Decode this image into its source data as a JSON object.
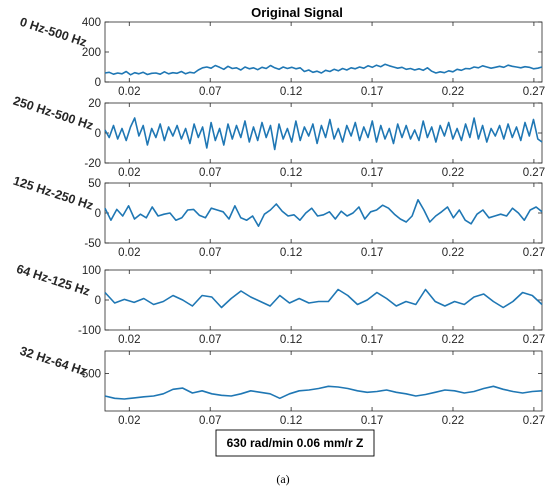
{
  "chart_data": {
    "type": "line",
    "title": "Original Signal",
    "annotation": "630 rad/min 0.06 mm/r Z",
    "caption": "(a)",
    "xlim": [
      0.005,
      0.275
    ],
    "xticks": [
      0.02,
      0.07,
      0.12,
      0.17,
      0.22,
      0.27
    ],
    "xtick_labels": [
      "0.02",
      "0.07",
      "0.12",
      "0.17",
      "0.22",
      "0.27"
    ],
    "line_color": "#1f77b4",
    "grid": false,
    "panels": [
      {
        "ylabel": "0 Hz-500 Hz",
        "ylim": [
          0,
          400
        ],
        "yticks": [
          0,
          200,
          400
        ],
        "ytick_labels": [
          "0",
          "200",
          "400"
        ],
        "y": [
          60,
          65,
          52,
          60,
          55,
          70,
          48,
          62,
          55,
          65,
          50,
          58,
          60,
          52,
          68,
          55,
          62,
          58,
          70,
          55,
          65,
          60,
          80,
          95,
          100,
          92,
          110,
          98,
          85,
          105,
          90,
          95,
          80,
          100,
          88,
          95,
          82,
          98,
          90,
          110,
          95,
          85,
          100,
          90,
          98,
          88,
          95,
          70,
          80,
          65,
          72,
          60,
          78,
          70,
          85,
          75,
          90,
          80,
          95,
          88,
          100,
          92,
          108,
          98,
          112,
          102,
          118,
          108,
          100,
          92,
          98,
          85,
          90,
          80,
          88,
          78,
          95,
          72,
          60,
          68,
          62,
          75,
          68,
          85,
          78,
          90,
          88,
          100,
          95,
          108,
          100,
          92,
          98,
          105,
          98,
          112,
          105,
          100,
          95,
          102,
          98,
          88,
          92,
          100
        ]
      },
      {
        "ylabel": "250 Hz-500 Hz",
        "ylim": [
          -20,
          20
        ],
        "yticks": [
          -20,
          0,
          20
        ],
        "ytick_labels": [
          "-20",
          "0",
          "20"
        ],
        "y": [
          2,
          -3,
          5,
          -4,
          3,
          -5,
          4,
          10,
          -2,
          5,
          -8,
          3,
          -3,
          6,
          -5,
          4,
          -2,
          5,
          -4,
          3,
          -7,
          6,
          -3,
          4,
          -10,
          7,
          -5,
          3,
          -8,
          6,
          -4,
          5,
          -3,
          8,
          -6,
          4,
          -5,
          7,
          -3,
          5,
          -11,
          6,
          -4,
          3,
          -6,
          8,
          -5,
          4,
          -2,
          6,
          -7,
          5,
          -3,
          9,
          -4,
          3,
          -6,
          5,
          -2,
          7,
          -5,
          4,
          -3,
          8,
          -6,
          5,
          -4,
          3,
          -7,
          6,
          -3,
          5,
          -4,
          2,
          -5,
          8,
          -3,
          4,
          -6,
          5,
          -2,
          7,
          -4,
          3,
          -5,
          6,
          -3,
          10,
          -4,
          5,
          -6,
          3,
          -2,
          5,
          -4,
          6,
          -3,
          4,
          -5,
          7,
          -2,
          9,
          -4,
          -6
        ]
      },
      {
        "ylabel": "125 Hz-250 Hz",
        "ylim": [
          -50,
          50
        ],
        "yticks": [
          -50,
          0,
          50
        ],
        "ytick_labels": [
          "-50",
          "0",
          "50"
        ],
        "y": [
          8,
          -12,
          6,
          -5,
          12,
          -10,
          -2,
          -8,
          10,
          -5,
          -2,
          0,
          -12,
          -8,
          5,
          6,
          -4,
          -8,
          8,
          5,
          2,
          -10,
          12,
          -8,
          -12,
          -5,
          -22,
          -2,
          5,
          15,
          3,
          -5,
          -3,
          -12,
          0,
          8,
          -5,
          -3,
          2,
          -10,
          3,
          -5,
          0,
          10,
          -10,
          2,
          5,
          13,
          8,
          -2,
          -10,
          -15,
          -5,
          22,
          5,
          -15,
          -5,
          2,
          10,
          -8,
          5,
          -12,
          -18,
          -2,
          5,
          -8,
          -5,
          -2,
          -5,
          8,
          0,
          -12,
          5,
          10,
          2
        ]
      },
      {
        "ylabel": "64 Hz-125 Hz",
        "ylim": [
          -100,
          100
        ],
        "yticks": [
          -100,
          0,
          100
        ],
        "ytick_labels": [
          "-100",
          "0",
          "100"
        ],
        "y": [
          25,
          -10,
          2,
          -8,
          5,
          -15,
          -5,
          15,
          0,
          -20,
          15,
          10,
          -25,
          5,
          30,
          10,
          -5,
          -20,
          15,
          -10,
          5,
          -10,
          -5,
          -5,
          35,
          15,
          -15,
          0,
          25,
          5,
          -20,
          -5,
          -15,
          35,
          -5,
          -20,
          -5,
          -15,
          10,
          20,
          -5,
          -25,
          -5,
          25,
          15,
          -15
        ]
      },
      {
        "ylabel": "32 Hz-64 Hz",
        "ylim": [
          0,
          800
        ],
        "yticks": [
          500
        ],
        "ytick_labels": [
          "500"
        ],
        "y": [
          200,
          170,
          160,
          175,
          190,
          200,
          230,
          290,
          305,
          240,
          270,
          230,
          210,
          200,
          230,
          270,
          250,
          230,
          170,
          230,
          270,
          280,
          300,
          330,
          320,
          300,
          270,
          250,
          260,
          280,
          250,
          230,
          200,
          220,
          250,
          280,
          270,
          240,
          260,
          300,
          330,
          290,
          260,
          240,
          260,
          270
        ]
      }
    ]
  }
}
